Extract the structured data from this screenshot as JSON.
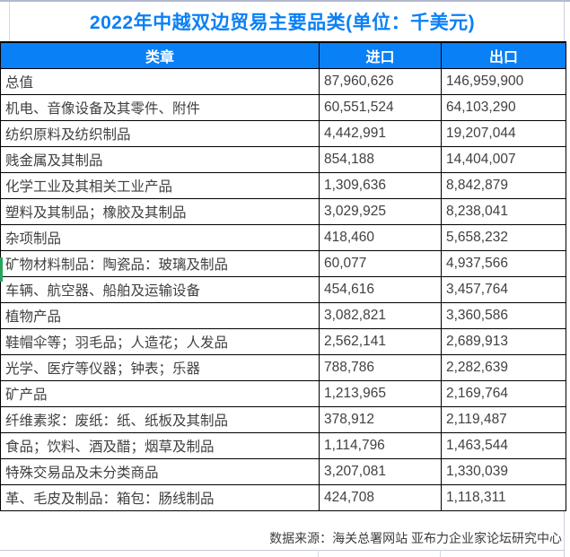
{
  "title": "2022年中越双边贸易主要品类(单位：千美元)",
  "colors": {
    "accent_blue": "#0a80f6",
    "header_background": "#0a80f6",
    "header_text": "#ffffff",
    "body_text": "#404040",
    "table_border": "#000000",
    "sheet_gridline": "#c4cadc",
    "active_cell_green": "#27a35c"
  },
  "table": {
    "headers": [
      "类章",
      "进口",
      "出口"
    ],
    "rows": [
      {
        "category": "总值",
        "import": "87,960,626",
        "export": "146,959,900"
      },
      {
        "category": "机电、音像设备及其零件、附件",
        "import": "60,551,524",
        "export": "64,103,290"
      },
      {
        "category": "纺织原料及纺织制品",
        "import": "4,442,991",
        "export": "19,207,044"
      },
      {
        "category": "贱金属及其制品",
        "import": "854,188",
        "export": "14,404,007"
      },
      {
        "category": "化学工业及其相关工业产品",
        "import": "1,309,636",
        "export": "8,842,879"
      },
      {
        "category": "塑料及其制品；橡胶及其制品",
        "import": "3,029,925",
        "export": "8,238,041"
      },
      {
        "category": "杂项制品",
        "import": "418,460",
        "export": "5,658,232"
      },
      {
        "category": "矿物材料制品：陶瓷品：玻璃及制品",
        "import": "60,077",
        "export": "4,937,566"
      },
      {
        "category": "车辆、航空器、船舶及运输设备",
        "import": "454,616",
        "export": "3,457,764"
      },
      {
        "category": "植物产品",
        "import": "3,082,821",
        "export": "3,360,586"
      },
      {
        "category": "鞋帽伞等；羽毛品；人造花；人发品",
        "import": "2,562,141",
        "export": "2,689,913"
      },
      {
        "category": "光学、医疗等仪器；钟表；乐器",
        "import": "788,786",
        "export": "2,282,639"
      },
      {
        "category": "矿产品",
        "import": "1,213,965",
        "export": "2,169,764"
      },
      {
        "category": "纤维素浆：废纸：纸、纸板及其制品",
        "import": "378,912",
        "export": "2,119,487"
      },
      {
        "category": "食品；饮料、酒及醋；烟草及制品",
        "import": "1,114,796",
        "export": "1,463,544"
      },
      {
        "category": "特殊交易品及未分类商品",
        "import": "3,207,081",
        "export": "1,330,039"
      },
      {
        "category": "革、毛皮及制品：箱包：肠线制品",
        "import": "424,708",
        "export": "1,118,311"
      }
    ]
  },
  "footer": {
    "source": "数据来源：海关总署网站 亚布力企业家论坛研究中心"
  },
  "chart_data": {
    "type": "table",
    "title": "2022年中越双边贸易主要品类(单位：千美元)",
    "unit": "千美元",
    "columns": [
      "类章",
      "进口",
      "出口"
    ],
    "rows": [
      [
        "总值",
        87960626,
        146959900
      ],
      [
        "机电、音像设备及其零件、附件",
        60551524,
        64103290
      ],
      [
        "纺织原料及纺织制品",
        4442991,
        19207044
      ],
      [
        "贱金属及其制品",
        854188,
        14404007
      ],
      [
        "化学工业及其相关工业产品",
        1309636,
        8842879
      ],
      [
        "塑料及其制品；橡胶及其制品",
        3029925,
        8238041
      ],
      [
        "杂项制品",
        418460,
        5658232
      ],
      [
        "矿物材料制品：陶瓷品：玻璃及制品",
        60077,
        4937566
      ],
      [
        "车辆、航空器、船舶及运输设备",
        454616,
        3457764
      ],
      [
        "植物产品",
        3082821,
        3360586
      ],
      [
        "鞋帽伞等；羽毛品；人造花；人发品",
        2562141,
        2689913
      ],
      [
        "光学、医疗等仪器；钟表；乐器",
        788786,
        2282639
      ],
      [
        "矿产品",
        1213965,
        2169764
      ],
      [
        "纤维素浆：废纸：纸、纸板及其制品",
        378912,
        2119487
      ],
      [
        "食品；饮料、酒及醋；烟草及制品",
        1114796,
        1463544
      ],
      [
        "特殊交易品及未分类商品",
        3207081,
        1330039
      ],
      [
        "革、毛皮及制品：箱包：肠线制品",
        424708,
        1118311
      ]
    ],
    "source": "数据来源：海关总署网站 亚布力企业家论坛研究中心"
  }
}
